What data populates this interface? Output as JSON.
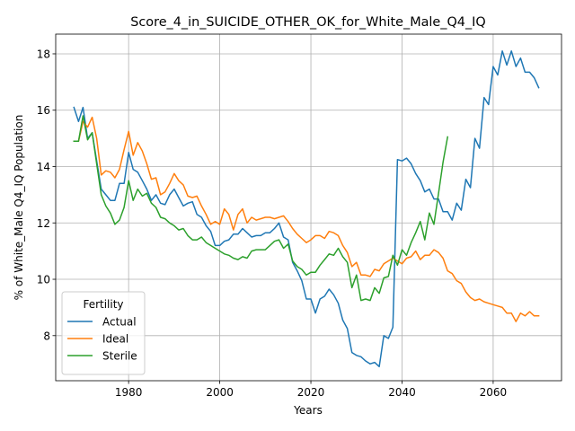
{
  "chart_data": {
    "type": "line",
    "title": "Score_4_in_SUICIDE_OTHER_OK_for_White_Male_Q4_IQ",
    "xlabel": "Years",
    "ylabel": "% of White_Male Q4_IQ Population",
    "xlim": [
      1964,
      2075
    ],
    "ylim": [
      6.4,
      18.7
    ],
    "xticks": [
      1980,
      2000,
      2020,
      2040,
      2060
    ],
    "yticks": [
      8,
      10,
      12,
      14,
      16,
      18
    ],
    "grid": true,
    "legend": {
      "title": "Fertility",
      "position": "lower-left"
    },
    "series": [
      {
        "name": "Actual",
        "color": "#1f77b4",
        "x": [
          1968,
          1969,
          1970,
          1971,
          1972,
          1973,
          1974,
          1975,
          1976,
          1977,
          1978,
          1979,
          1980,
          1981,
          1982,
          1983,
          1984,
          1985,
          1986,
          1987,
          1988,
          1989,
          1990,
          1991,
          1992,
          1993,
          1994,
          1995,
          1996,
          1997,
          1998,
          1999,
          2000,
          2001,
          2002,
          2003,
          2004,
          2005,
          2006,
          2007,
          2008,
          2009,
          2010,
          2011,
          2012,
          2013,
          2014,
          2015,
          2016,
          2017,
          2018,
          2019,
          2020,
          2021,
          2022,
          2023,
          2024,
          2025,
          2026,
          2027,
          2028,
          2029,
          2030,
          2031,
          2032,
          2033,
          2034,
          2035,
          2036,
          2037,
          2038,
          2039,
          2040,
          2041,
          2042,
          2043,
          2044,
          2045,
          2046,
          2047,
          2048,
          2049,
          2050,
          2051,
          2052,
          2053,
          2054,
          2055,
          2056,
          2057,
          2058,
          2059,
          2060,
          2061,
          2062,
          2063,
          2064,
          2065,
          2066,
          2067,
          2068,
          2069,
          2070
        ],
        "y": [
          16.1,
          15.6,
          16.1,
          15.0,
          15.2,
          14.2,
          13.2,
          13.0,
          12.8,
          12.8,
          13.4,
          13.4,
          14.5,
          13.9,
          13.8,
          13.5,
          13.2,
          12.8,
          13.0,
          12.7,
          12.65,
          13.0,
          13.2,
          12.9,
          12.6,
          12.7,
          12.75,
          12.3,
          12.2,
          11.9,
          11.7,
          11.2,
          11.2,
          11.35,
          11.4,
          11.6,
          11.6,
          11.8,
          11.65,
          11.5,
          11.55,
          11.55,
          11.65,
          11.65,
          11.8,
          12.0,
          11.5,
          11.4,
          10.6,
          10.3,
          9.95,
          9.3,
          9.3,
          8.8,
          9.3,
          9.4,
          9.65,
          9.45,
          9.15,
          8.55,
          8.25,
          7.4,
          7.3,
          7.25,
          7.1,
          7.0,
          7.05,
          6.9,
          8.0,
          7.9,
          8.3,
          14.25,
          14.2,
          14.3,
          14.1,
          13.75,
          13.5,
          13.1,
          13.2,
          12.85,
          12.85,
          12.4,
          12.4,
          12.1,
          12.7,
          12.45,
          13.55,
          13.25,
          15.0,
          14.65,
          16.45,
          16.2,
          17.55,
          17.25,
          18.1,
          17.6,
          18.1,
          17.55,
          17.85,
          17.35,
          17.35,
          17.15,
          16.8
        ]
      },
      {
        "name": "Ideal",
        "color": "#ff7f0e",
        "x": [
          1968,
          1969,
          1970,
          1971,
          1972,
          1973,
          1974,
          1975,
          1976,
          1977,
          1978,
          1979,
          1980,
          1981,
          1982,
          1983,
          1984,
          1985,
          1986,
          1987,
          1988,
          1989,
          1990,
          1991,
          1992,
          1993,
          1994,
          1995,
          1996,
          1997,
          1998,
          1999,
          2000,
          2001,
          2002,
          2003,
          2004,
          2005,
          2006,
          2007,
          2008,
          2009,
          2010,
          2011,
          2012,
          2013,
          2014,
          2015,
          2016,
          2017,
          2018,
          2019,
          2020,
          2021,
          2022,
          2023,
          2024,
          2025,
          2026,
          2027,
          2028,
          2029,
          2030,
          2031,
          2032,
          2033,
          2034,
          2035,
          2036,
          2037,
          2038,
          2039,
          2040,
          2041,
          2042,
          2043,
          2044,
          2045,
          2046,
          2047,
          2048,
          2049,
          2050,
          2051,
          2052,
          2053,
          2054,
          2055,
          2056,
          2057,
          2058,
          2059,
          2060,
          2061,
          2062,
          2063,
          2064,
          2065,
          2066,
          2067,
          2068,
          2069,
          2070
        ],
        "y": [
          14.9,
          14.9,
          15.6,
          15.4,
          15.75,
          15.0,
          13.7,
          13.85,
          13.8,
          13.6,
          13.9,
          14.6,
          15.25,
          14.4,
          14.85,
          14.55,
          14.1,
          13.55,
          13.6,
          13.0,
          13.1,
          13.4,
          13.75,
          13.5,
          13.35,
          12.95,
          12.9,
          12.95,
          12.6,
          12.3,
          11.95,
          12.05,
          11.95,
          12.5,
          12.3,
          11.75,
          12.3,
          12.5,
          12.0,
          12.2,
          12.1,
          12.15,
          12.2,
          12.2,
          12.15,
          12.2,
          12.25,
          12.05,
          11.8,
          11.6,
          11.45,
          11.3,
          11.4,
          11.55,
          11.55,
          11.45,
          11.7,
          11.65,
          11.55,
          11.2,
          10.95,
          10.45,
          10.6,
          10.15,
          10.15,
          10.1,
          10.35,
          10.3,
          10.55,
          10.65,
          10.75,
          10.65,
          10.55,
          10.75,
          10.8,
          11.0,
          10.7,
          10.85,
          10.85,
          11.05,
          10.95,
          10.75,
          10.3,
          10.2,
          9.95,
          9.85,
          9.55,
          9.35,
          9.25,
          9.3,
          9.2,
          9.15,
          9.1,
          9.05,
          9.0,
          8.8,
          8.8,
          8.5,
          8.8,
          8.7,
          8.85,
          8.7,
          8.7
        ]
      },
      {
        "name": "Sterile",
        "color": "#2ca02c",
        "x": [
          1968,
          1969,
          1970,
          1971,
          1972,
          1973,
          1974,
          1975,
          1976,
          1977,
          1978,
          1979,
          1980,
          1981,
          1982,
          1983,
          1984,
          1985,
          1986,
          1987,
          1988,
          1989,
          1990,
          1991,
          1992,
          1993,
          1994,
          1995,
          1996,
          1997,
          1998,
          1999,
          2000,
          2001,
          2002,
          2003,
          2004,
          2005,
          2006,
          2007,
          2008,
          2009,
          2010,
          2011,
          2012,
          2013,
          2014,
          2015,
          2016,
          2017,
          2018,
          2019,
          2020,
          2021,
          2022,
          2023,
          2024,
          2025,
          2026,
          2027,
          2028,
          2029,
          2030,
          2031,
          2032,
          2033,
          2034,
          2035,
          2036,
          2037,
          2038,
          2039,
          2040,
          2041,
          2042,
          2043,
          2044,
          2045,
          2046,
          2047,
          2048,
          2049,
          2050
        ],
        "y": [
          14.9,
          14.9,
          15.8,
          14.95,
          15.2,
          14.1,
          13.0,
          12.6,
          12.35,
          11.95,
          12.1,
          12.55,
          13.5,
          12.8,
          13.2,
          12.95,
          13.05,
          12.7,
          12.55,
          12.2,
          12.15,
          12.0,
          11.9,
          11.75,
          11.8,
          11.55,
          11.4,
          11.4,
          11.5,
          11.3,
          11.2,
          11.1,
          11.0,
          10.9,
          10.85,
          10.75,
          10.7,
          10.8,
          10.75,
          11.0,
          11.05,
          11.05,
          11.05,
          11.2,
          11.35,
          11.4,
          11.1,
          11.25,
          10.65,
          10.45,
          10.35,
          10.15,
          10.25,
          10.25,
          10.5,
          10.7,
          10.9,
          10.85,
          11.1,
          10.8,
          10.6,
          9.7,
          10.15,
          9.25,
          9.3,
          9.25,
          9.7,
          9.5,
          10.05,
          10.1,
          10.85,
          10.5,
          11.05,
          10.85,
          11.3,
          11.65,
          12.05,
          11.4,
          12.35,
          11.95,
          13.05,
          14.15,
          15.05
        ]
      }
    ]
  }
}
